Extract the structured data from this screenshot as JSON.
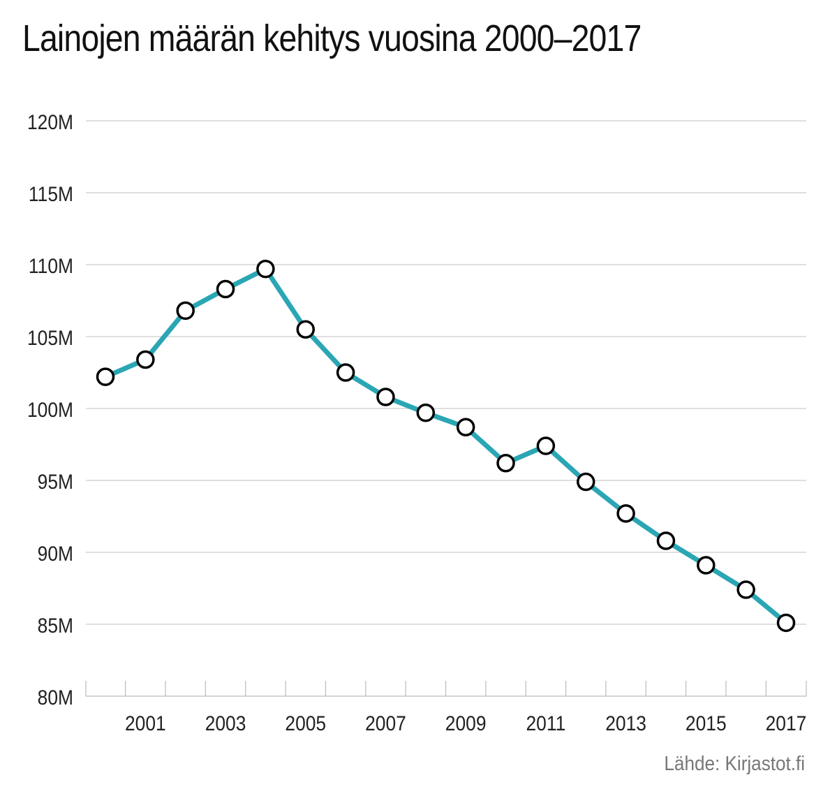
{
  "chart_data": {
    "type": "line",
    "title": "Lainojen määrän kehitys vuosina 2000–2017",
    "source": "Lähde: Kirjastot.fi",
    "x": [
      2000,
      2001,
      2002,
      2003,
      2004,
      2005,
      2006,
      2007,
      2008,
      2009,
      2010,
      2011,
      2012,
      2013,
      2014,
      2015,
      2016,
      2017
    ],
    "x_tick_labels": [
      "2001",
      "2003",
      "2005",
      "2007",
      "2009",
      "2011",
      "2013",
      "2015",
      "2017"
    ],
    "y_tick_labels": [
      "80M",
      "85M",
      "90M",
      "95M",
      "100M",
      "105M",
      "110M",
      "115M",
      "120M"
    ],
    "y_ticks": [
      80,
      85,
      90,
      95,
      100,
      105,
      110,
      115,
      120
    ],
    "ylim": [
      80,
      120
    ],
    "y_unit": "millions",
    "series": [
      {
        "values": [
          102.2,
          103.4,
          106.8,
          108.3,
          109.7,
          105.5,
          102.5,
          100.8,
          99.7,
          98.7,
          96.2,
          97.4,
          94.9,
          92.7,
          90.8,
          89.1,
          87.4,
          85.1
        ]
      }
    ],
    "grid": true,
    "line_color": "#2aa6b4",
    "marker_fill": "#ffffff",
    "marker_stroke": "#000000",
    "grid_color": "#cccccc",
    "tick_label_color": "#222222",
    "source_color": "#777777"
  }
}
